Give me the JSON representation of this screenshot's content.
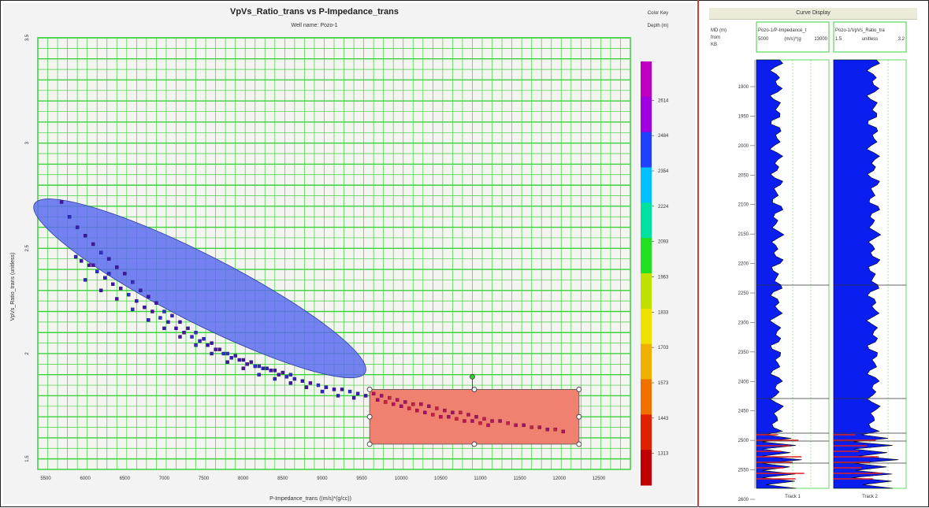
{
  "crossplot": {
    "title": "VpVs_Ratio_trans vs P-Impedance_trans",
    "subtitle": "Well name: Pozo-1",
    "xlabel": "P-Impedance_trans ((m/s)*(g/cc))",
    "ylabel": "VpVs_Ratio_trans (unitless)"
  },
  "colorkey": {
    "title": "Color Key",
    "subtitle": "Depth (m)",
    "labels": [
      "2614",
      "2484",
      "2354",
      "2224",
      "2093",
      "1963",
      "1833",
      "1703",
      "1573",
      "1443",
      "1313"
    ],
    "colors": [
      "#c000c0",
      "#a000e0",
      "#2040ff",
      "#00c0ff",
      "#00e0a0",
      "#20e020",
      "#c0e000",
      "#f0e000",
      "#f0b000",
      "#f07000",
      "#e02000",
      "#c00000"
    ]
  },
  "curve_display": {
    "title": "Curve Display",
    "depth_header": [
      "MD (m)",
      "from",
      "KB"
    ],
    "track1": {
      "header1": "Pozo-1/P-Impedance_t",
      "min": "5000",
      "units": "(m/s)*(g",
      "max": "13000",
      "label": "Track 1"
    },
    "track2": {
      "header1": "Pozo-1/VpVs_Ratio_tra",
      "min": "1.5",
      "units": "unitless",
      "max": "3.2",
      "label": "Track 2"
    },
    "depth_ticks": [
      "1900",
      "1950",
      "2000",
      "2050",
      "2100",
      "2150",
      "2200",
      "2250",
      "2300",
      "2350",
      "2400",
      "2450",
      "2500",
      "2550",
      "2600"
    ]
  },
  "chart_data": {
    "type": "scatter",
    "title": "VpVs_Ratio_trans vs P-Impedance_trans",
    "subtitle": "Well name: Pozo-1",
    "xlabel": "P-Impedance_trans ((m/s)*(g/cc))",
    "ylabel": "VpVs_Ratio_trans (unitless)",
    "xlim": [
      5400,
      12900
    ],
    "ylim": [
      1.45,
      3.5
    ],
    "xticks": [
      5500,
      6000,
      6500,
      7000,
      7500,
      8000,
      8500,
      9000,
      9500,
      10000,
      10500,
      11000,
      11500,
      12000,
      12500
    ],
    "yticks": [
      1.5,
      2,
      2.5,
      3,
      3.5
    ],
    "grid": true,
    "series": [
      {
        "points": [
          [
            5880,
            2.46
          ],
          [
            5950,
            2.44
          ],
          [
            6050,
            2.42
          ],
          [
            6150,
            2.39
          ],
          [
            6250,
            2.36
          ],
          [
            6350,
            2.33
          ],
          [
            6450,
            2.31
          ],
          [
            6550,
            2.28
          ],
          [
            6650,
            2.25
          ],
          [
            6750,
            2.22
          ],
          [
            6850,
            2.2
          ],
          [
            6950,
            2.17
          ],
          [
            7050,
            2.15
          ],
          [
            7150,
            2.12
          ],
          [
            7250,
            2.1
          ],
          [
            7350,
            2.08
          ],
          [
            7450,
            2.06
          ],
          [
            7550,
            2.04
          ],
          [
            7650,
            2.02
          ],
          [
            7750,
            2.0
          ],
          [
            7850,
            1.98
          ],
          [
            7950,
            1.97
          ],
          [
            8050,
            1.95
          ],
          [
            8150,
            1.94
          ],
          [
            8250,
            1.93
          ],
          [
            8350,
            1.92
          ],
          [
            8450,
            1.9
          ],
          [
            8550,
            1.89
          ],
          [
            8650,
            1.88
          ],
          [
            8750,
            1.87
          ],
          [
            8850,
            1.86
          ],
          [
            8950,
            1.85
          ],
          [
            9050,
            1.84
          ],
          [
            9150,
            1.83
          ],
          [
            9250,
            1.83
          ],
          [
            9350,
            1.82
          ],
          [
            9450,
            1.81
          ],
          [
            9550,
            1.8
          ],
          [
            5700,
            2.72
          ],
          [
            5800,
            2.65
          ],
          [
            5900,
            2.6
          ],
          [
            6000,
            2.56
          ],
          [
            6100,
            2.52
          ],
          [
            6200,
            2.48
          ],
          [
            6300,
            2.45
          ],
          [
            6400,
            2.41
          ],
          [
            6500,
            2.38
          ],
          [
            6600,
            2.34
          ],
          [
            6700,
            2.3
          ],
          [
            6800,
            2.27
          ],
          [
            6900,
            2.24
          ],
          [
            7000,
            2.2
          ],
          [
            7100,
            2.18
          ],
          [
            7200,
            2.15
          ],
          [
            7300,
            2.12
          ],
          [
            7400,
            2.1
          ],
          [
            7500,
            2.07
          ],
          [
            7600,
            2.05
          ],
          [
            7700,
            2.02
          ],
          [
            7800,
            2.0
          ],
          [
            7900,
            1.99
          ],
          [
            8000,
            1.97
          ],
          [
            8100,
            1.96
          ],
          [
            8200,
            1.94
          ],
          [
            8300,
            1.93
          ],
          [
            8400,
            1.92
          ],
          [
            8500,
            1.91
          ],
          [
            8600,
            1.9
          ],
          [
            6000,
            2.35
          ],
          [
            6200,
            2.3
          ],
          [
            6400,
            2.26
          ],
          [
            6600,
            2.21
          ],
          [
            6800,
            2.16
          ],
          [
            7000,
            2.12
          ],
          [
            7200,
            2.08
          ],
          [
            7400,
            2.04
          ],
          [
            7600,
            2.0
          ],
          [
            7800,
            1.96
          ],
          [
            8000,
            1.93
          ],
          [
            8200,
            1.9
          ],
          [
            8400,
            1.88
          ],
          [
            8600,
            1.86
          ],
          [
            8800,
            1.84
          ],
          [
            9000,
            1.82
          ],
          [
            9200,
            1.8
          ],
          [
            9400,
            1.79
          ],
          [
            6100,
            2.42
          ],
          [
            6300,
            2.38
          ]
        ]
      },
      {
        "points": [
          [
            9650,
            1.81
          ],
          [
            9750,
            1.8
          ],
          [
            9850,
            1.79
          ],
          [
            9950,
            1.78
          ],
          [
            10050,
            1.77
          ],
          [
            10150,
            1.76
          ],
          [
            10250,
            1.76
          ],
          [
            10350,
            1.75
          ],
          [
            10450,
            1.74
          ],
          [
            10550,
            1.73
          ],
          [
            10650,
            1.72
          ],
          [
            10750,
            1.72
          ],
          [
            10850,
            1.71
          ],
          [
            10950,
            1.7
          ],
          [
            11050,
            1.69
          ],
          [
            11150,
            1.68
          ],
          [
            11250,
            1.68
          ],
          [
            11350,
            1.67
          ],
          [
            11450,
            1.66
          ],
          [
            11550,
            1.66
          ],
          [
            11650,
            1.65
          ],
          [
            11750,
            1.65
          ],
          [
            11850,
            1.64
          ],
          [
            11950,
            1.64
          ],
          [
            12050,
            1.63
          ],
          [
            9700,
            1.78
          ],
          [
            9800,
            1.77
          ],
          [
            9900,
            1.76
          ],
          [
            10000,
            1.75
          ],
          [
            10100,
            1.74
          ],
          [
            10200,
            1.73
          ],
          [
            10300,
            1.72
          ],
          [
            10400,
            1.71
          ],
          [
            10500,
            1.7
          ],
          [
            10600,
            1.7
          ],
          [
            10700,
            1.69
          ],
          [
            10800,
            1.68
          ],
          [
            10900,
            1.68
          ],
          [
            11000,
            1.67
          ],
          [
            11100,
            1.66
          ]
        ]
      }
    ],
    "ellipse": {
      "cx": 7450,
      "cy": 2.31,
      "rx_value": 2350,
      "ry_value": 0.16,
      "angle_deg": -18,
      "fill": "#5060e8"
    },
    "rect": {
      "x0": 9600,
      "x1": 12250,
      "y0": 1.57,
      "y1": 1.83,
      "fill": "#f07060"
    },
    "handle": {
      "x": 10900,
      "y": 1.89
    },
    "colors": {
      "grid": "#3bd23b",
      "ellipse": "#5d6cf0",
      "rect": "#f08070"
    }
  }
}
